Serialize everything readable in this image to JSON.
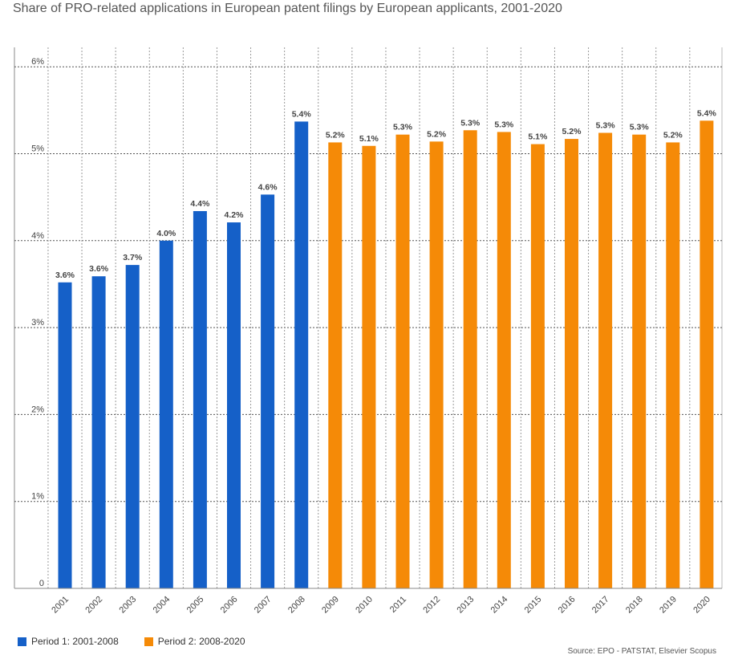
{
  "title": "Share of PRO-related applications in European patent filings by European applicants, 2001-2020",
  "source": "Source: EPO - PATSTAT, Elsevier Scopus",
  "colors": {
    "period1": "#1560c8",
    "period2": "#f58a07"
  },
  "legend": [
    {
      "label": "Period 1: 2001-2008",
      "color": "#1560c8"
    },
    {
      "label": "Period 2: 2008-2020",
      "color": "#f58a07"
    }
  ],
  "chart_data": {
    "type": "bar",
    "title": "Share of PRO-related applications in European patent filings by European applicants, 2001-2020",
    "xlabel": "",
    "ylabel": "",
    "ylim": [
      0,
      6
    ],
    "yticks": [
      "0",
      "1%",
      "2%",
      "3%",
      "4%",
      "5%",
      "6%"
    ],
    "grid": true,
    "legend_position": "bottom-left",
    "categories": [
      "2001",
      "2002",
      "2003",
      "2004",
      "2005",
      "2006",
      "2007",
      "2008",
      "2009",
      "2010",
      "2011",
      "2012",
      "2013",
      "2014",
      "2015",
      "2016",
      "2017",
      "2018",
      "2019",
      "2020"
    ],
    "values": [
      3.52,
      3.59,
      3.72,
      4.0,
      4.34,
      4.21,
      4.53,
      5.37,
      5.13,
      5.09,
      5.22,
      5.14,
      5.27,
      5.25,
      5.11,
      5.17,
      5.24,
      5.22,
      5.13,
      5.38
    ],
    "labels": [
      "3.6%",
      "3.6%",
      "3.7%",
      "4.0%",
      "4.4%",
      "4.2%",
      "4.6%",
      "5.4%",
      "5.2%",
      "5.1%",
      "5.3%",
      "5.2%",
      "5.3%",
      "5.3%",
      "5.1%",
      "5.2%",
      "5.3%",
      "5.3%",
      "5.2%",
      "5.4%"
    ],
    "series_assignment": [
      "period1",
      "period1",
      "period1",
      "period1",
      "period1",
      "period1",
      "period1",
      "period1",
      "period2",
      "period2",
      "period2",
      "period2",
      "period2",
      "period2",
      "period2",
      "period2",
      "period2",
      "period2",
      "period2",
      "period2"
    ]
  }
}
